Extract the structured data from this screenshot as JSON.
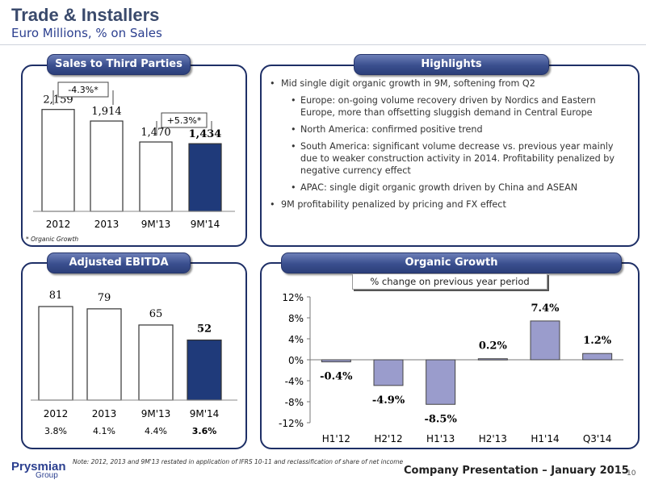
{
  "header": {
    "title": "Trade & Installers",
    "subtitle": "Euro Millions, % on Sales"
  },
  "sales_panel": {
    "banner": "Sales to Third Parties",
    "growth_left": "-4.3%",
    "growth_right": "+5.3%",
    "star": "*",
    "footnote": "* Organic Growth"
  },
  "highlights_panel": {
    "banner": "Highlights",
    "items": [
      "Mid single digit organic growth in 9M, softening from Q2",
      "Europe: on-going volume recovery driven by Nordics and Eastern Europe, more than offsetting sluggish demand in Central Europe",
      "North America: confirmed positive trend",
      "South America: significant volume decrease vs. previous year mainly due to weaker construction activity in 2014. Profitability penalized by negative currency effect",
      "APAC: single digit organic growth driven by China and ASEAN",
      "9M profitability penalized by pricing and FX effect"
    ]
  },
  "ebitda_panel": {
    "banner": "Adjusted EBITDA"
  },
  "organic_panel": {
    "banner": "Organic Growth",
    "note": "% change on previous year period"
  },
  "chart_data": [
    {
      "type": "bar",
      "title": "Sales to Third Parties",
      "categories": [
        "2012",
        "2013",
        "9M'13",
        "9M'14"
      ],
      "values": [
        2159,
        1914,
        1470,
        1434
      ],
      "value_labels": [
        "2,159",
        "1,914",
        "1,470",
        "1,434"
      ],
      "ylim": [
        0,
        2400
      ],
      "colors": [
        "#ffffff",
        "#ffffff",
        "#ffffff",
        "#1f3a7a"
      ],
      "annotations": [
        "-4.3%*",
        "+5.3%*"
      ]
    },
    {
      "type": "bar",
      "title": "Adjusted EBITDA",
      "categories": [
        "2012",
        "2013",
        "9M'13",
        "9M'14"
      ],
      "values": [
        81,
        79,
        65,
        52
      ],
      "value_labels": [
        "81",
        "79",
        "65",
        "52"
      ],
      "margins": [
        "3.8%",
        "4.1%",
        "4.4%",
        "3.6%"
      ],
      "ylim": [
        0,
        90
      ],
      "colors": [
        "#ffffff",
        "#ffffff",
        "#ffffff",
        "#1f3a7a"
      ]
    },
    {
      "type": "bar",
      "title": "Organic Growth",
      "categories": [
        "H1'12",
        "H2'12",
        "H1'13",
        "H2'13",
        "H1'14",
        "Q3'14"
      ],
      "values": [
        -0.4,
        -4.9,
        -8.5,
        0.2,
        7.4,
        1.2
      ],
      "value_labels": [
        "-0.4%",
        "-4.9%",
        "-8.5%",
        "0.2%",
        "7.4%",
        "1.2%"
      ],
      "ylim": [
        -12,
        12
      ],
      "yticks": [
        "12%",
        "8%",
        "4%",
        "0%",
        "-4%",
        "-8%",
        "-12%"
      ],
      "ytick_values": [
        12,
        8,
        4,
        0,
        -4,
        -8,
        -12
      ],
      "color": "#9a9ccc"
    }
  ],
  "footer": {
    "note": "Note: 2012, 2013 and 9M'13 restated in application of IFRS 10-11 and reclassification of share of net income",
    "presentation": "Company Presentation – January 2015",
    "page": "10",
    "logo_text": "Prysmian",
    "logo_sub": "Group"
  }
}
